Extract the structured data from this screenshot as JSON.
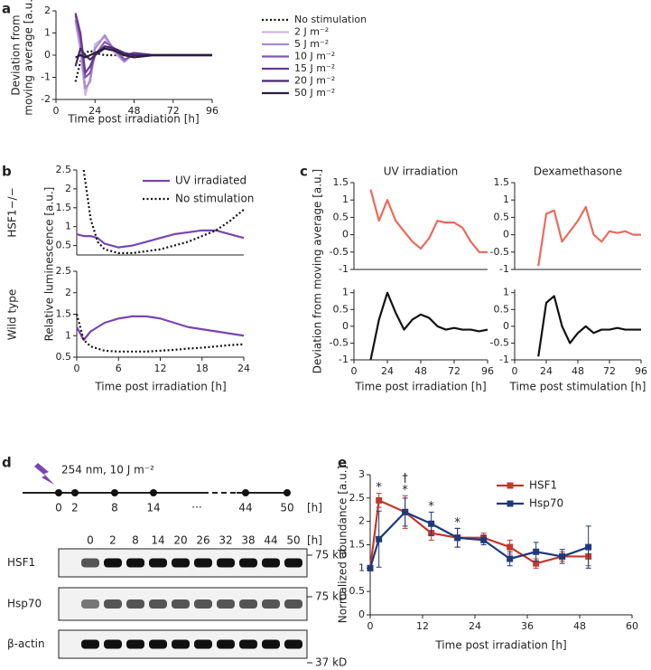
{
  "chart_data": [
    {
      "panel": "a",
      "type": "line",
      "xlabel": "Time post irradiation [h]",
      "ylabel": [
        "Deviation from",
        "moving average [a.u.]"
      ],
      "x": [
        12,
        15,
        18,
        21,
        24,
        30,
        36,
        42,
        48,
        60,
        72,
        84,
        96
      ],
      "series": [
        {
          "name": "No stimulation",
          "color": "#111111",
          "style": "dotted",
          "values": [
            -1.2,
            -0.3,
            0.1,
            0.2,
            0.1,
            0,
            0,
            0,
            0,
            0,
            0,
            0,
            0
          ]
        },
        {
          "name": "2 J m⁻²",
          "color": "#cbb8e0",
          "values": [
            1.5,
            0.2,
            -1.8,
            -1,
            0.5,
            0.8,
            0.1,
            -0.3,
            0.1,
            0,
            0,
            0,
            0
          ]
        },
        {
          "name": "5 J m⁻²",
          "color": "#a98bcb",
          "values": [
            1.6,
            0.5,
            -1.5,
            -1.2,
            0.3,
            0.9,
            0.2,
            -0.3,
            0.1,
            0,
            0,
            0,
            0
          ]
        },
        {
          "name": "10 J m⁻²",
          "color": "#8456b4",
          "values": [
            1.8,
            0.8,
            -1,
            -0.8,
            0,
            0.6,
            0.3,
            -0.2,
            0,
            0,
            0,
            0,
            0
          ]
        },
        {
          "name": "15 J m⁻²",
          "color": "#673896",
          "values": [
            1.9,
            1,
            -0.8,
            -0.5,
            0,
            0.3,
            0.2,
            0,
            0.1,
            0,
            0,
            0,
            0
          ]
        },
        {
          "name": "20 J m⁻²",
          "color": "#46286a",
          "values": [
            -0.5,
            0.3,
            0,
            -0.2,
            0,
            0.4,
            0.3,
            0.1,
            0,
            0,
            0,
            0,
            0
          ]
        },
        {
          "name": "50 J m⁻²",
          "color": "#2a1e38",
          "values": [
            -0.1,
            0,
            -0.1,
            0,
            0.1,
            0.3,
            0.2,
            0,
            -0.1,
            0,
            0,
            0,
            0
          ]
        }
      ],
      "xlim": [
        0,
        96
      ],
      "xticks": [
        0,
        24,
        48,
        72,
        96
      ],
      "ylim": [
        -2,
        2
      ],
      "yticks": [
        -2,
        -1,
        0,
        1,
        2
      ],
      "legend": "right"
    },
    {
      "panel": "b",
      "type": "line",
      "row_label": "HSF1−/−",
      "ylabel": "Relative luminescence [a.u.]",
      "x": [
        0,
        1,
        2,
        3,
        4,
        6,
        8,
        10,
        12,
        14,
        16,
        18,
        20,
        22,
        24
      ],
      "series": [
        {
          "name": "UV irradiated",
          "color": "#7a45b0",
          "values": [
            0.8,
            0.75,
            0.75,
            0.7,
            0.55,
            0.45,
            0.5,
            0.6,
            0.7,
            0.8,
            0.85,
            0.9,
            0.9,
            0.8,
            0.7
          ]
        },
        {
          "name": "No stimulation",
          "color": "#111111",
          "style": "dotted",
          "values": [
            null,
            2.5,
            1.2,
            0.6,
            0.4,
            0.3,
            0.3,
            0.35,
            0.4,
            0.5,
            0.6,
            0.75,
            0.9,
            1.15,
            1.45
          ]
        }
      ],
      "xlim": [
        0,
        24
      ],
      "ylim": [
        0.25,
        2.5
      ],
      "yticks": [
        0.5,
        1,
        1.5,
        2,
        2.5
      ],
      "legend": "upper right"
    },
    {
      "type": "line",
      "row_label": "Wild type",
      "xlabel": "Time post irradiation [h]",
      "x": [
        0,
        1,
        2,
        3,
        4,
        6,
        8,
        10,
        12,
        14,
        16,
        18,
        20,
        22,
        24
      ],
      "series": [
        {
          "color": "#7a45b0",
          "values": [
            1.2,
            0.9,
            1.1,
            1.2,
            1.3,
            1.4,
            1.45,
            1.45,
            1.4,
            1.3,
            1.2,
            1.15,
            1.1,
            1.05,
            1.0
          ]
        },
        {
          "color": "#111111",
          "style": "dotted",
          "values": [
            1.5,
            0.9,
            0.75,
            0.7,
            0.65,
            0.63,
            0.63,
            0.63,
            0.65,
            0.67,
            0.7,
            0.72,
            0.75,
            0.78,
            0.8
          ]
        }
      ],
      "xlim": [
        0,
        24
      ],
      "xticks": [
        0,
        6,
        12,
        18,
        24
      ],
      "ylim": [
        0.5,
        2.5
      ],
      "yticks": [
        0.5,
        1,
        1.5,
        2,
        2.5
      ]
    },
    {
      "panel": "c",
      "type": "line",
      "title": "UV irradiation",
      "ylabel": "Deviation from moving average [a.u.]",
      "x": [
        12,
        18,
        24,
        30,
        36,
        42,
        48,
        54,
        60,
        66,
        72,
        78,
        84,
        90,
        96
      ],
      "series": [
        {
          "color": "#ea6a5c",
          "values": [
            1.3,
            0.4,
            1.0,
            0.4,
            0.1,
            -0.2,
            -0.4,
            -0.1,
            0.4,
            0.35,
            0.35,
            0.2,
            -0.2,
            -0.5,
            -0.5
          ]
        }
      ],
      "xlim": [
        0,
        96
      ],
      "ylim": [
        -1,
        1.5
      ],
      "yticks": [
        -1,
        -0.5,
        0,
        0.5,
        1,
        1.5
      ]
    },
    {
      "type": "line",
      "title": "Dexamethasone",
      "x": [
        12,
        18,
        24,
        30,
        36,
        42,
        48,
        54,
        60,
        66,
        72,
        78,
        84,
        90,
        96
      ],
      "series": [
        {
          "color": "#ea6a5c",
          "values": [
            null,
            -0.9,
            0.6,
            0.7,
            -0.2,
            0.1,
            0.4,
            0.8,
            0.0,
            -0.2,
            0.1,
            0.05,
            0.1,
            0.0,
            0.0
          ]
        }
      ],
      "xlim": [
        0,
        96
      ],
      "ylim": [
        -1,
        1.5
      ],
      "yticks": [
        -1,
        -0.5,
        0,
        0.5,
        1,
        1.5
      ]
    },
    {
      "type": "line",
      "xlabel": "Time post irradiation [h]",
      "x": [
        12,
        18,
        24,
        30,
        36,
        42,
        48,
        54,
        60,
        66,
        72,
        78,
        84,
        90,
        96
      ],
      "series": [
        {
          "color": "#111111",
          "values": [
            -1,
            0.2,
            1.0,
            0.4,
            -0.1,
            0.2,
            0.35,
            0.25,
            0.0,
            -0.1,
            -0.05,
            -0.1,
            -0.1,
            -0.15,
            -0.1
          ]
        }
      ],
      "xlim": [
        0,
        96
      ],
      "xticks": [
        0,
        24,
        48,
        72,
        96
      ],
      "ylim": [
        -1,
        1.1
      ],
      "yticks": [
        -1,
        -0.5,
        0,
        0.5,
        1
      ]
    },
    {
      "type": "line",
      "xlabel": "Time post stimulation [h]",
      "x": [
        12,
        18,
        24,
        30,
        36,
        42,
        48,
        54,
        60,
        66,
        72,
        78,
        84,
        90,
        96
      ],
      "series": [
        {
          "color": "#111111",
          "values": [
            null,
            -0.9,
            0.7,
            0.9,
            0.0,
            -0.5,
            -0.2,
            0.0,
            -0.2,
            -0.1,
            -0.1,
            -0.05,
            -0.1,
            -0.1,
            -0.1
          ]
        }
      ],
      "xlim": [
        0,
        96
      ],
      "xticks": [
        0,
        24,
        48,
        72,
        96
      ],
      "ylim": [
        -1,
        1.1
      ],
      "yticks": [
        -1,
        -0.5,
        0,
        0.5,
        1
      ]
    },
    {
      "panel": "e",
      "type": "line",
      "xlabel": "Time post irradiation [h]",
      "ylabel": "Normalized abundance [a.u.]",
      "x": [
        0,
        2,
        8,
        14,
        20,
        26,
        32,
        38,
        44,
        50
      ],
      "series": [
        {
          "name": "HSF1",
          "color": "#c0392b",
          "marker": "square",
          "values": [
            1,
            2.45,
            2.2,
            1.75,
            1.65,
            1.65,
            1.45,
            1.1,
            1.25,
            1.25
          ],
          "errors": [
            0.05,
            0.15,
            0.35,
            0.15,
            0.2,
            0.1,
            0.15,
            0.1,
            0.1,
            0.2
          ]
        },
        {
          "name": "Hsp70",
          "color": "#1f3a7a",
          "marker": "square",
          "values": [
            1,
            1.62,
            2.2,
            1.95,
            1.65,
            1.6,
            1.2,
            1.35,
            1.25,
            1.45
          ],
          "errors": [
            0.05,
            0.6,
            0.3,
            0.25,
            0.2,
            0.1,
            0.15,
            0.2,
            0.15,
            0.45
          ]
        }
      ],
      "annotations": [
        {
          "text": "*",
          "x": 2
        },
        {
          "text": "*",
          "x": 8
        },
        {
          "text": "†",
          "x": 8
        },
        {
          "text": "*",
          "x": 14
        },
        {
          "text": "*",
          "x": 20
        }
      ],
      "xlim": [
        0,
        60
      ],
      "xticks": [
        0,
        12,
        24,
        36,
        48,
        60
      ],
      "ylim": [
        0,
        3
      ],
      "yticks": [
        0,
        0.5,
        1,
        1.5,
        2,
        2.5,
        3
      ],
      "legend": "upper right"
    }
  ],
  "panel_d": {
    "panel": "d",
    "dose": "254 nm, 10 J m⁻²",
    "timeline": [
      "0",
      "2",
      "8",
      "14",
      "...",
      "44",
      "50"
    ],
    "timeline_unit": "[h]",
    "lanes": [
      "0",
      "2",
      "8",
      "14",
      "20",
      "26",
      "32",
      "38",
      "44",
      "50"
    ],
    "lane_unit": "[h]",
    "rows": [
      "HSF1",
      "Hsp70",
      "β-actin"
    ],
    "markers": [
      "75 kD",
      "75 kD",
      "37 kD"
    ]
  }
}
